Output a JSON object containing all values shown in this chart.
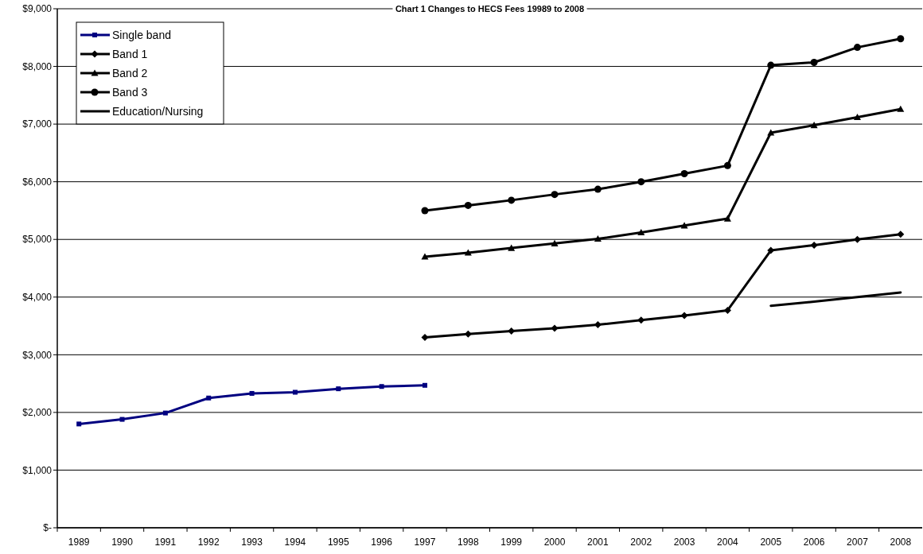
{
  "chart_data": {
    "type": "line",
    "title": "Chart 1 Changes to HECS Fees 19989 to 2008",
    "categories": [
      "1989",
      "1990",
      "1991",
      "1992",
      "1993",
      "1994",
      "1995",
      "1996",
      "1997",
      "1998",
      "1999",
      "2000",
      "2001",
      "2002",
      "2003",
      "2004",
      "2005",
      "2006",
      "2007",
      "2008"
    ],
    "series": [
      {
        "name": "Single band",
        "color": "#000080",
        "marker": "square",
        "values": [
          1800,
          1880,
          1990,
          2250,
          2330,
          2350,
          2410,
          2450,
          2470,
          null,
          null,
          null,
          null,
          null,
          null,
          null,
          null,
          null,
          null,
          null
        ]
      },
      {
        "name": "Band 1",
        "color": "#000000",
        "marker": "diamond",
        "values": [
          null,
          null,
          null,
          null,
          null,
          null,
          null,
          null,
          3300,
          3360,
          3410,
          3460,
          3520,
          3600,
          3680,
          3770,
          4810,
          4900,
          5000,
          5090
        ]
      },
      {
        "name": "Band 2",
        "color": "#000000",
        "marker": "triangle",
        "values": [
          null,
          null,
          null,
          null,
          null,
          null,
          null,
          null,
          4700,
          4770,
          4850,
          4930,
          5010,
          5120,
          5240,
          5360,
          6850,
          6980,
          7120,
          7260
        ]
      },
      {
        "name": "Band 3",
        "color": "#000000",
        "marker": "circle",
        "values": [
          null,
          null,
          null,
          null,
          null,
          null,
          null,
          null,
          5500,
          5590,
          5680,
          5780,
          5870,
          6000,
          6140,
          6280,
          8020,
          8070,
          8330,
          8480
        ]
      },
      {
        "name": "Education/Nursing",
        "color": "#000000",
        "marker": "none",
        "values": [
          null,
          null,
          null,
          null,
          null,
          null,
          null,
          null,
          null,
          null,
          null,
          null,
          null,
          null,
          null,
          null,
          3850,
          3920,
          4000,
          4080
        ]
      }
    ],
    "ylim": [
      0,
      9000
    ],
    "yticks": [
      {
        "value": 0,
        "label": "$-"
      },
      {
        "value": 1000,
        "label": "$1,000"
      },
      {
        "value": 2000,
        "label": "$2,000"
      },
      {
        "value": 3000,
        "label": "$3,000"
      },
      {
        "value": 4000,
        "label": "$4,000"
      },
      {
        "value": 5000,
        "label": "$5,000"
      },
      {
        "value": 6000,
        "label": "$6,000"
      },
      {
        "value": 7000,
        "label": "$7,000"
      },
      {
        "value": 8000,
        "label": "$8,000"
      },
      {
        "value": 9000,
        "label": "$9,000"
      }
    ],
    "grid": "y",
    "legend": "top left",
    "line_style": "solid"
  }
}
